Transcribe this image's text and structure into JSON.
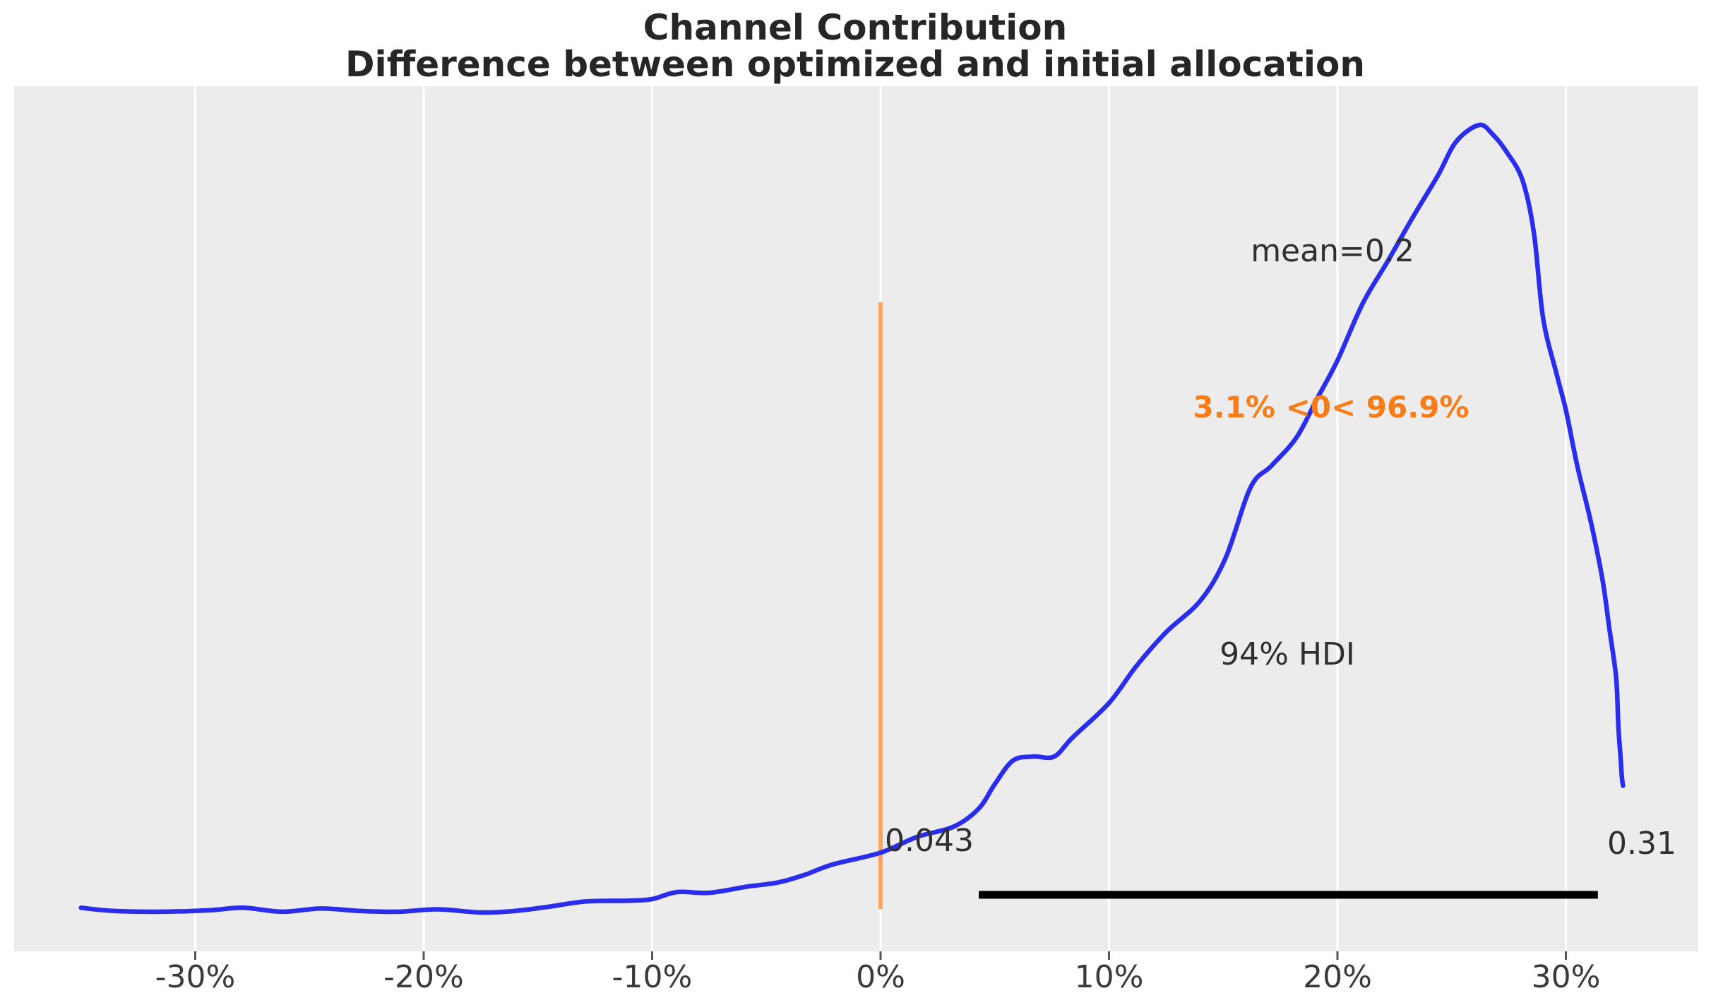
{
  "figure": {
    "title_line1": "Channel Contribution",
    "title_line2": "Difference between optimized and initial allocation"
  },
  "chart_data": {
    "type": "line",
    "subtype": "kde-density",
    "title": "Channel Contribution",
    "subtitle": "Difference between optimized and initial allocation",
    "xlabel": "",
    "ylabel": "",
    "x_unit": "percent",
    "xlim": [
      -38,
      36.5
    ],
    "ylim_density_normalized": [
      0,
      1.1
    ],
    "grid": "vertical white gridlines on gray panel",
    "legend_position": "none",
    "x_ticks": [
      {
        "value": -30,
        "label": "-30%"
      },
      {
        "value": -20,
        "label": "-20%"
      },
      {
        "value": -10,
        "label": "-10%"
      },
      {
        "value": 0,
        "label": "0%"
      },
      {
        "value": 10,
        "label": "10%"
      },
      {
        "value": 20,
        "label": "20%"
      },
      {
        "value": 30,
        "label": "30%"
      }
    ],
    "series": [
      {
        "name": "posterior density of contribution difference",
        "color": "#2a2eec",
        "points_x_pct_y_reldensity": [
          [
            -35.0,
            0.006
          ],
          [
            -33.6,
            0.002
          ],
          [
            -31.4,
            0.001
          ],
          [
            -29.3,
            0.003
          ],
          [
            -27.9,
            0.006
          ],
          [
            -26.2,
            0.001
          ],
          [
            -24.5,
            0.005
          ],
          [
            -22.8,
            0.002
          ],
          [
            -21.1,
            0.001
          ],
          [
            -19.4,
            0.004
          ],
          [
            -17.5,
            0.0
          ],
          [
            -16.0,
            0.002
          ],
          [
            -14.6,
            0.007
          ],
          [
            -12.9,
            0.014
          ],
          [
            -11.0,
            0.015
          ],
          [
            -10.0,
            0.017
          ],
          [
            -8.9,
            0.026
          ],
          [
            -7.5,
            0.025
          ],
          [
            -5.8,
            0.033
          ],
          [
            -4.5,
            0.038
          ],
          [
            -3.3,
            0.048
          ],
          [
            -2.1,
            0.061
          ],
          [
            0.0,
            0.076
          ],
          [
            1.6,
            0.096
          ],
          [
            3.2,
            0.109
          ],
          [
            4.3,
            0.132
          ],
          [
            5.0,
            0.163
          ],
          [
            5.8,
            0.193
          ],
          [
            6.7,
            0.198
          ],
          [
            7.6,
            0.198
          ],
          [
            8.4,
            0.222
          ],
          [
            10.0,
            0.266
          ],
          [
            11.2,
            0.313
          ],
          [
            12.5,
            0.356
          ],
          [
            14.0,
            0.396
          ],
          [
            15.1,
            0.45
          ],
          [
            16.2,
            0.54
          ],
          [
            17.1,
            0.567
          ],
          [
            18.2,
            0.603
          ],
          [
            19.1,
            0.652
          ],
          [
            20.0,
            0.701
          ],
          [
            21.1,
            0.773
          ],
          [
            22.2,
            0.827
          ],
          [
            23.3,
            0.883
          ],
          [
            24.4,
            0.936
          ],
          [
            25.2,
            0.979
          ],
          [
            26.2,
            1.0
          ],
          [
            26.8,
            0.988
          ],
          [
            27.4,
            0.966
          ],
          [
            28.1,
            0.93
          ],
          [
            28.6,
            0.863
          ],
          [
            29.0,
            0.755
          ],
          [
            29.6,
            0.683
          ],
          [
            30.0,
            0.638
          ],
          [
            30.5,
            0.567
          ],
          [
            31.1,
            0.495
          ],
          [
            31.6,
            0.423
          ],
          [
            31.9,
            0.361
          ],
          [
            32.2,
            0.298
          ],
          [
            32.3,
            0.235
          ],
          [
            32.4,
            0.195
          ],
          [
            32.45,
            0.172
          ],
          [
            32.5,
            0.161
          ]
        ]
      }
    ],
    "reference_line": {
      "x_pct": 0,
      "color": "#f9a45f"
    },
    "hdi": {
      "prob": 0.94,
      "lower": 0.043,
      "upper": 0.31,
      "bar_pct": [
        4.3,
        31.4
      ],
      "bar_color": "#000000"
    },
    "annotations": {
      "mean_label": "mean=0.2",
      "prob_label": "3.1% <0< 96.9%",
      "hdi_label": "94% HDI",
      "hdi_lower_label": "0.043",
      "hdi_upper_label": "0.31"
    },
    "colors": {
      "curve": "#2a2eec",
      "ref_line": "#f9a45f",
      "prob_text": "#fa7c17",
      "plot_bg": "#ececec",
      "gridline": "#ffffff",
      "tick_text": "#3a3a3a",
      "annotation_text": "#2f2f2f",
      "title_text": "#262626"
    }
  }
}
